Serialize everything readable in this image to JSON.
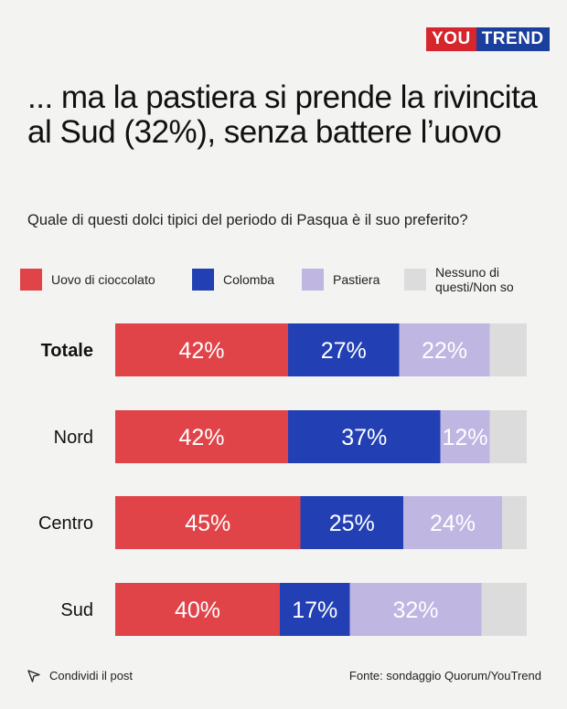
{
  "brand": {
    "part1": "YOU",
    "part2": "TREND"
  },
  "title": "... ma la pastiera si prende la rivincita al Sud (32%), senza battere l’uovo",
  "subtitle": "Quale di questi dolci tipici del periodo di Pasqua è il suo preferito?",
  "legend": [
    {
      "label": "Uovo di cioccolato",
      "color": "#e04449"
    },
    {
      "label": "Colomba",
      "color": "#2240b4"
    },
    {
      "label": "Pastiera",
      "color": "#c0b6e2"
    },
    {
      "label": "Nessuno di questi/Non so",
      "color": "#dcdcdc"
    }
  ],
  "chart_data": {
    "type": "bar",
    "orientation": "horizontal",
    "stacked": true,
    "categories": [
      "Totale",
      "Nord",
      "Centro",
      "Sud"
    ],
    "series": [
      {
        "name": "Uovo di cioccolato",
        "values": [
          42,
          42,
          45,
          40
        ],
        "labels": [
          "42%",
          "42%",
          "45%",
          "40%"
        ]
      },
      {
        "name": "Colomba",
        "values": [
          27,
          37,
          25,
          17
        ],
        "labels": [
          "27%",
          "37%",
          "25%",
          "17%"
        ]
      },
      {
        "name": "Pastiera",
        "values": [
          22,
          12,
          24,
          32
        ],
        "labels": [
          "22%",
          "12%",
          "24%",
          "32%"
        ]
      },
      {
        "name": "Nessuno di questi/Non so",
        "values": [
          9,
          9,
          6,
          11
        ],
        "labels": [
          "",
          "",
          "",
          ""
        ]
      }
    ],
    "xlim": [
      0,
      100
    ],
    "legend_position": "top",
    "grid": false,
    "bold_category": "Totale"
  },
  "footer": {
    "share": "Condividi il post",
    "source": "Fonte: sondaggio Quorum/YouTrend"
  }
}
